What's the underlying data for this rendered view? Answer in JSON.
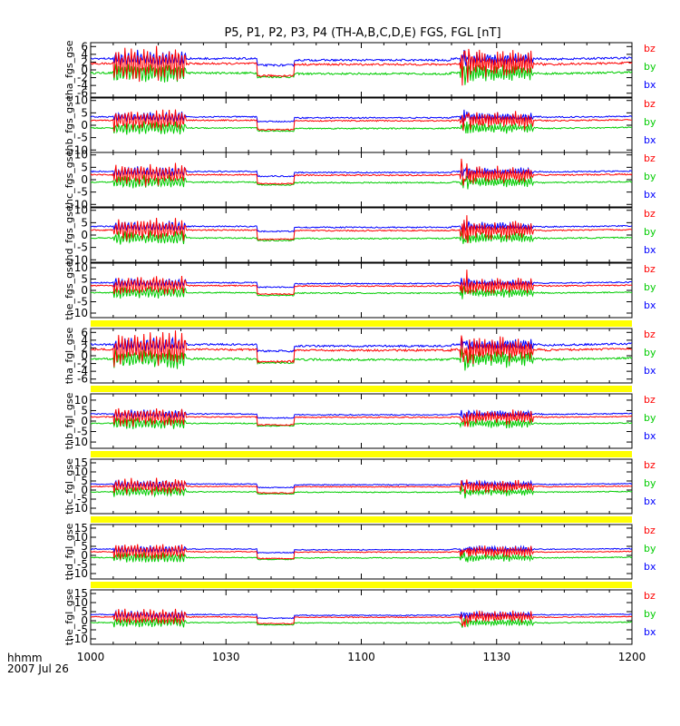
{
  "chart_data": {
    "type": "line",
    "title": "P5, P1, P2, P3, P4 (TH-A,B,C,D,E) FGS, FGL [nT]",
    "x_axis": {
      "label_line1": "hhmm",
      "label_line2": "2007 Jul 26",
      "tick_labels": [
        "1000",
        "1030",
        "1100",
        "1130",
        "1200"
      ],
      "range_minutes": [
        0,
        120
      ]
    },
    "legend": [
      {
        "name": "bz",
        "color": "#ff0000"
      },
      {
        "name": "by",
        "color": "#00cc00"
      },
      {
        "name": "bx",
        "color": "#0000ff"
      }
    ],
    "separator_color": "#ffff00",
    "events": [
      {
        "name": "quiet_step",
        "start_min": 37,
        "end_min": 45
      },
      {
        "name": "wave_burst_1",
        "start_min": 5,
        "end_min": 21
      },
      {
        "name": "wave_burst_2",
        "start_min": 82,
        "end_min": 98
      }
    ],
    "panels": [
      {
        "ylabel": "tha_fgs_gse",
        "ylim": [
          -7,
          7
        ],
        "yticks": [
          "6",
          "4",
          "2",
          "0",
          "-2",
          "-4",
          "-6"
        ],
        "series": [
          {
            "name": "bx",
            "level": 2.9,
            "step_to": 1.2
          },
          {
            "name": "bz",
            "level": 1.6,
            "step_to": -1.5
          },
          {
            "name": "by",
            "level": -0.8,
            "step_to": -1.8
          }
        ]
      },
      {
        "ylabel": "thb_fgs_gse",
        "ylim": [
          -11,
          11
        ],
        "yticks": [
          "10",
          "5",
          "0",
          "-5",
          "-10"
        ],
        "series": [
          {
            "name": "bx",
            "level": 3.4,
            "step_to": 1.5
          },
          {
            "name": "bz",
            "level": 2.0,
            "step_to": -1.8
          },
          {
            "name": "by",
            "level": -1.1,
            "step_to": -2.3
          }
        ]
      },
      {
        "ylabel": "thc_fgs_gse",
        "ylim": [
          -11,
          11
        ],
        "yticks": [
          "10",
          "5",
          "0",
          "-5",
          "-10"
        ],
        "series": [
          {
            "name": "bx",
            "level": 3.3,
            "step_to": 1.4
          },
          {
            "name": "bz",
            "level": 2.0,
            "step_to": -1.6
          },
          {
            "name": "by",
            "level": -1.0,
            "step_to": -2.1
          }
        ]
      },
      {
        "ylabel": "thd_fgs_gse",
        "ylim": [
          -11,
          11
        ],
        "yticks": [
          "10",
          "5",
          "0",
          "-5",
          "-10"
        ],
        "series": [
          {
            "name": "bx",
            "level": 3.5,
            "step_to": 1.5
          },
          {
            "name": "bz",
            "level": 2.0,
            "step_to": -1.7
          },
          {
            "name": "by",
            "level": -1.2,
            "step_to": -2.2
          }
        ]
      },
      {
        "ylabel": "the_fgs_gse",
        "ylim": [
          -12,
          12
        ],
        "yticks": [
          "10",
          "5",
          "0",
          "-5",
          "-10"
        ],
        "series": [
          {
            "name": "bx",
            "level": 3.4,
            "step_to": 1.4
          },
          {
            "name": "bz",
            "level": 2.1,
            "step_to": -1.6
          },
          {
            "name": "by",
            "level": -1.0,
            "step_to": -2.2
          }
        ]
      },
      {
        "ylabel": "tha_fgl_gse",
        "ylim": [
          -7,
          7
        ],
        "yticks": [
          "6",
          "4",
          "2",
          "0",
          "-2",
          "-4",
          "-6"
        ],
        "series": [
          {
            "name": "bx",
            "level": 2.9,
            "step_to": 1.2
          },
          {
            "name": "bz",
            "level": 1.6,
            "step_to": -1.5
          },
          {
            "name": "by",
            "level": -0.8,
            "step_to": -1.8
          }
        ]
      },
      {
        "ylabel": "thb_fgl_gse",
        "ylim": [
          -13,
          13
        ],
        "yticks": [
          "10",
          "5",
          "0",
          "-5",
          "-10"
        ],
        "series": [
          {
            "name": "bx",
            "level": 3.4,
            "step_to": 1.5
          },
          {
            "name": "bz",
            "level": 2.0,
            "step_to": -1.8
          },
          {
            "name": "by",
            "level": -1.1,
            "step_to": -2.3
          }
        ]
      },
      {
        "ylabel": "thc_fgl_gse",
        "ylim": [
          -13,
          17
        ],
        "yticks": [
          "15",
          "10",
          "5",
          "0",
          "-5",
          "-10"
        ],
        "series": [
          {
            "name": "bx",
            "level": 3.3,
            "step_to": 1.4
          },
          {
            "name": "bz",
            "level": 2.0,
            "step_to": -1.6
          },
          {
            "name": "by",
            "level": -1.0,
            "step_to": -2.1
          }
        ]
      },
      {
        "ylabel": "thd_fgl_gse",
        "ylim": [
          -13,
          17
        ],
        "yticks": [
          "15",
          "10",
          "5",
          "0",
          "-5",
          "-10"
        ],
        "series": [
          {
            "name": "bx",
            "level": 3.5,
            "step_to": 1.5
          },
          {
            "name": "bz",
            "level": 2.0,
            "step_to": -1.7
          },
          {
            "name": "by",
            "level": -1.2,
            "step_to": -2.2
          }
        ]
      },
      {
        "ylabel": "the_fgl_gse",
        "ylim": [
          -13,
          17
        ],
        "yticks": [
          "15",
          "10",
          "5",
          "0",
          "-5",
          "-10"
        ],
        "series": [
          {
            "name": "bx",
            "level": 3.4,
            "step_to": 1.4
          },
          {
            "name": "bz",
            "level": 2.1,
            "step_to": -1.6
          },
          {
            "name": "by",
            "level": -1.0,
            "step_to": -2.2
          }
        ]
      }
    ]
  }
}
